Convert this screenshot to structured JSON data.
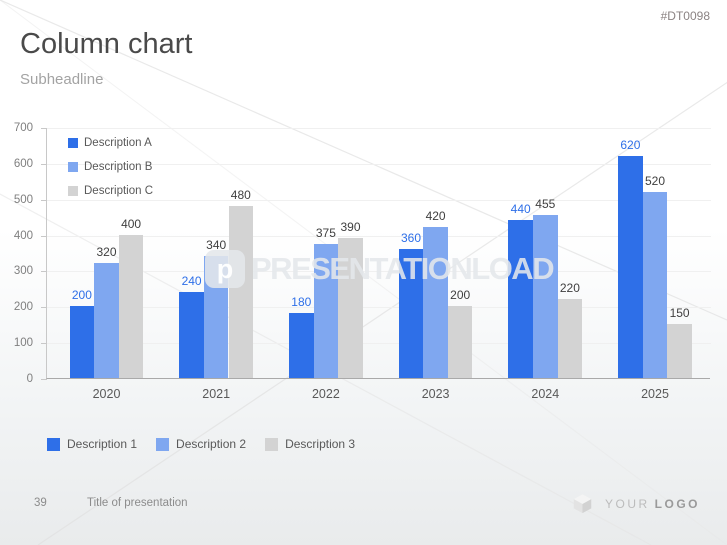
{
  "product_code": "#DT0098",
  "header": {
    "title": "Column chart",
    "subtitle": "Subheadline"
  },
  "watermark": {
    "text": "PRESENTATIONLOAD",
    "logo_letter": "p"
  },
  "chart_data": {
    "type": "bar",
    "title": "",
    "xlabel": "",
    "ylabel": "",
    "categories": [
      "2020",
      "2021",
      "2022",
      "2023",
      "2024",
      "2025"
    ],
    "series": [
      {
        "name": "Description A",
        "color": "#2E6FE8",
        "label_color": "#2E6FE8",
        "values": [
          200,
          240,
          180,
          360,
          440,
          620
        ]
      },
      {
        "name": "Description B",
        "color": "#7FA7F0",
        "label_color": "#3F3F3F",
        "values": [
          320,
          340,
          375,
          420,
          455,
          520
        ]
      },
      {
        "name": "Description C",
        "color": "#D3D3D3",
        "label_color": "#3F3F3F",
        "values": [
          400,
          480,
          390,
          200,
          220,
          150
        ]
      }
    ],
    "ylim": [
      0,
      700
    ],
    "yticks": [
      0,
      100,
      200,
      300,
      400,
      500,
      600,
      700
    ],
    "grid": true,
    "legend_position": "top-left-inside",
    "bar_labels_shown": true
  },
  "bottom_legend": [
    {
      "label": "Description 1",
      "color": "#2E6FE8"
    },
    {
      "label": "Description 2",
      "color": "#7FA7F0"
    },
    {
      "label": "Description 3",
      "color": "#D3D3D3"
    }
  ],
  "footer": {
    "page_number": "39",
    "presentation_title": "Title of presentation",
    "logo_text_light": "YOUR",
    "logo_text_bold": "LOGO"
  }
}
